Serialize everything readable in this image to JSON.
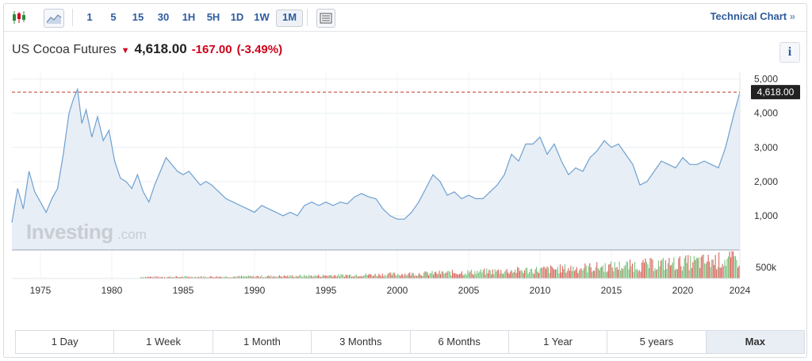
{
  "toolbar": {
    "periods": [
      "1",
      "5",
      "15",
      "30",
      "1H",
      "5H",
      "1D",
      "1W",
      "1M"
    ],
    "active_period": "1M",
    "technical_chart": "Technical Chart",
    "technical_chevron": "»"
  },
  "quote": {
    "name": "US Cocoa Futures",
    "price": "4,618.00",
    "change": "-167.00",
    "change_pct": "(-3.49%)",
    "down_color": "#d0021b"
  },
  "info_label": "i",
  "watermark": {
    "brand": "Investing",
    "suffix": ".com"
  },
  "ranges": {
    "items": [
      "1 Day",
      "1 Week",
      "1 Month",
      "3 Months",
      "6 Months",
      "1 Year",
      "5 years",
      "Max"
    ],
    "active": "Max"
  },
  "chart_data": {
    "type": "area",
    "xlabel": "",
    "ylabel": "",
    "xlim": [
      1973.0,
      2024.0
    ],
    "ylim": [
      0,
      5200
    ],
    "x_ticks": [
      1975,
      1980,
      1985,
      1990,
      1995,
      2000,
      2005,
      2010,
      2015,
      2020,
      2024
    ],
    "y_ticks": [
      {
        "value": 1000,
        "label": "1,000"
      },
      {
        "value": 2000,
        "label": "2,000"
      },
      {
        "value": 3000,
        "label": "3,000"
      },
      {
        "value": 4000,
        "label": "4,000"
      },
      {
        "value": 5000,
        "label": "5,000"
      }
    ],
    "current_value": 4618,
    "current_label": "4,618.00",
    "line_color": "#6fa0cf",
    "fill_color": "#e7eef6",
    "grid": true,
    "series": [
      {
        "x": [
          1973.0,
          1973.4,
          1973.8,
          1974.2,
          1974.6,
          1975.0,
          1975.4,
          1975.8,
          1976.2,
          1976.6,
          1977.0,
          1977.3,
          1977.6,
          1977.9,
          1978.2,
          1978.6,
          1979.0,
          1979.4,
          1979.8,
          1980.2,
          1980.6,
          1981.0,
          1981.4,
          1981.8,
          1982.2,
          1982.6,
          1983.0,
          1983.4,
          1983.8,
          1984.2,
          1984.6,
          1985.0,
          1985.4,
          1985.8,
          1986.2,
          1986.6,
          1987.0,
          1987.5,
          1988.0,
          1988.5,
          1989.0,
          1989.5,
          1990.0,
          1990.5,
          1991.0,
          1991.5,
          1992.0,
          1992.5,
          1993.0,
          1993.5,
          1994.0,
          1994.5,
          1995.0,
          1995.5,
          1996.0,
          1996.5,
          1997.0,
          1997.5,
          1998.0,
          1998.5,
          1999.0,
          1999.5,
          2000.0,
          2000.5,
          2001.0,
          2001.5,
          2002.0,
          2002.5,
          2003.0,
          2003.5,
          2004.0,
          2004.5,
          2005.0,
          2005.5,
          2006.0,
          2006.5,
          2007.0,
          2007.5,
          2008.0,
          2008.5,
          2009.0,
          2009.5,
          2010.0,
          2010.5,
          2011.0,
          2011.5,
          2012.0,
          2012.5,
          2013.0,
          2013.5,
          2014.0,
          2014.5,
          2015.0,
          2015.5,
          2016.0,
          2016.5,
          2017.0,
          2017.5,
          2018.0,
          2018.5,
          2019.0,
          2019.5,
          2020.0,
          2020.5,
          2021.0,
          2021.5,
          2022.0,
          2022.5,
          2023.0,
          2023.3,
          2023.6,
          2023.8,
          2024.0
        ],
        "y": [
          800,
          1800,
          1200,
          2300,
          1700,
          1400,
          1100,
          1500,
          1800,
          2800,
          4000,
          4400,
          4700,
          3700,
          4100,
          3300,
          3900,
          3200,
          3500,
          2600,
          2100,
          2000,
          1800,
          2200,
          1700,
          1400,
          1900,
          2300,
          2700,
          2500,
          2300,
          2200,
          2300,
          2100,
          1900,
          2000,
          1900,
          1700,
          1500,
          1400,
          1300,
          1200,
          1100,
          1300,
          1200,
          1100,
          1000,
          1100,
          1000,
          1300,
          1400,
          1300,
          1400,
          1300,
          1400,
          1350,
          1550,
          1650,
          1550,
          1500,
          1200,
          1000,
          900,
          900,
          1100,
          1400,
          1800,
          2200,
          2000,
          1600,
          1700,
          1500,
          1600,
          1500,
          1500,
          1700,
          1900,
          2200,
          2800,
          2600,
          3100,
          3100,
          3300,
          2800,
          3100,
          2600,
          2200,
          2400,
          2300,
          2700,
          2900,
          3200,
          3000,
          3100,
          2800,
          2500,
          1900,
          2000,
          2300,
          2600,
          2500,
          2400,
          2700,
          2500,
          2500,
          2600,
          2500,
          2400,
          3000,
          3500,
          4000,
          4300,
          4618
        ]
      }
    ],
    "volume": {
      "axis_label": "500k",
      "start": 1982,
      "end": 2024
    }
  }
}
